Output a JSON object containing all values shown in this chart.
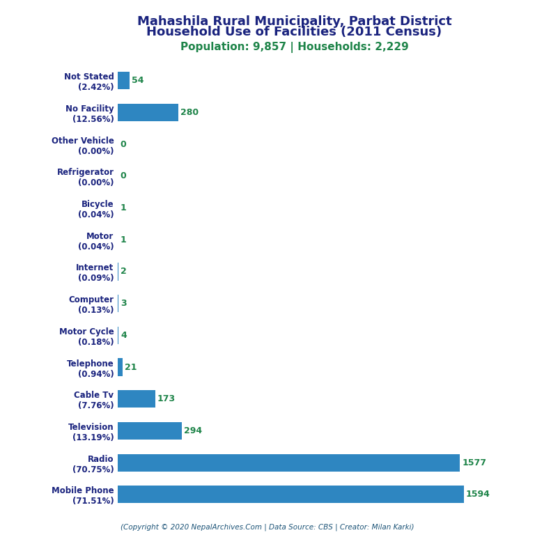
{
  "title_line1": "Mahashila Rural Municipality, Parbat District",
  "title_line2": "Household Use of Facilities (2011 Census)",
  "subtitle": "Population: 9,857 | Households: 2,229",
  "footer": "(Copyright © 2020 NepalArchives.Com | Data Source: CBS | Creator: Milan Karki)",
  "categories": [
    "Not Stated\n(2.42%)",
    "No Facility\n(12.56%)",
    "Other Vehicle\n(0.00%)",
    "Refrigerator\n(0.00%)",
    "Bicycle\n(0.04%)",
    "Motor\n(0.04%)",
    "Internet\n(0.09%)",
    "Computer\n(0.13%)",
    "Motor Cycle\n(0.18%)",
    "Telephone\n(0.94%)",
    "Cable Tv\n(7.76%)",
    "Television\n(13.19%)",
    "Radio\n(70.75%)",
    "Mobile Phone\n(71.51%)"
  ],
  "values": [
    54,
    280,
    0,
    0,
    1,
    1,
    2,
    3,
    4,
    21,
    173,
    294,
    1577,
    1594
  ],
  "bar_color": "#2e86c1",
  "title_color": "#1a237e",
  "subtitle_color": "#1e8449",
  "value_color": "#1e8449",
  "footer_color": "#1a5276",
  "background_color": "#ffffff",
  "xlim": [
    0,
    1750
  ]
}
